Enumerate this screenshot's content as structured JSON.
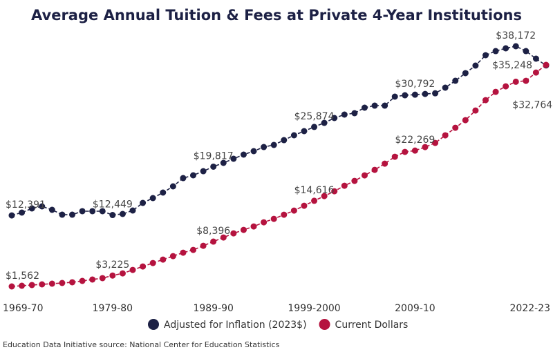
{
  "chart_data": {
    "type": "line",
    "title": "Average Annual Tuition & Fees at Private 4-Year Institutions",
    "source": "Education Data Initiative source: National Center for Education Statistics",
    "categories": [
      "1969-70",
      null,
      null,
      null,
      null,
      null,
      null,
      null,
      null,
      null,
      "1979-80",
      null,
      null,
      null,
      null,
      null,
      null,
      null,
      null,
      null,
      "1989-90",
      null,
      null,
      null,
      null,
      null,
      null,
      null,
      null,
      null,
      "1999-2000",
      null,
      null,
      null,
      null,
      null,
      null,
      null,
      null,
      null,
      "2009-10",
      null,
      null,
      null,
      null,
      null,
      null,
      null,
      null,
      null,
      null,
      null,
      null,
      "2022-23"
    ],
    "series": [
      {
        "name": "Adjusted for Inflation (2023$)",
        "color": "#1d2145",
        "values": [
          12391,
          12818,
          13450,
          13765,
          13239,
          12500,
          12500,
          13030,
          13030,
          13030,
          12449,
          12608,
          13134,
          14291,
          15028,
          15869,
          16816,
          18078,
          18499,
          19130,
          19817,
          20393,
          21024,
          21655,
          22181,
          22812,
          23128,
          23864,
          24601,
          25232,
          25874,
          26494,
          27231,
          27757,
          27967,
          28809,
          29124,
          29124,
          30492,
          30702,
          30792,
          30900,
          31000,
          31860,
          32912,
          34069,
          35226,
          36804,
          37435,
          37856,
          38172,
          37435,
          36278,
          35248
        ],
        "value_labels": [
          "$12,391",
          null,
          null,
          null,
          null,
          null,
          null,
          null,
          null,
          null,
          "$12,449",
          null,
          null,
          null,
          null,
          null,
          null,
          null,
          null,
          null,
          "$19,817",
          null,
          null,
          null,
          null,
          null,
          null,
          null,
          null,
          null,
          "$25,874",
          null,
          null,
          null,
          null,
          null,
          null,
          null,
          null,
          null,
          "$30,792",
          null,
          null,
          null,
          null,
          null,
          null,
          null,
          null,
          null,
          "$38,172",
          null,
          null,
          "$35,248"
        ]
      },
      {
        "name": "Current Dollars",
        "color": "#b5133f",
        "values": [
          1562,
          1667,
          1773,
          1878,
          1983,
          2088,
          2194,
          2404,
          2615,
          2825,
          3225,
          3552,
          4078,
          4604,
          5130,
          5656,
          6182,
          6708,
          7129,
          7760,
          8396,
          9022,
          9654,
          10180,
          10706,
          11337,
          11863,
          12494,
          13125,
          13862,
          14616,
          15334,
          16070,
          16912,
          17648,
          18490,
          19331,
          20278,
          21330,
          22066,
          22269,
          22803,
          23434,
          24591,
          25748,
          26905,
          28378,
          29956,
          31218,
          32060,
          32764,
          32902,
          34165,
          35330
        ],
        "value_labels": [
          "$1,562",
          null,
          null,
          null,
          null,
          null,
          null,
          null,
          null,
          null,
          "$3,225",
          null,
          null,
          null,
          null,
          null,
          null,
          null,
          null,
          null,
          "$8,396",
          null,
          null,
          null,
          null,
          null,
          null,
          null,
          null,
          null,
          "$14,616",
          null,
          null,
          null,
          null,
          null,
          null,
          null,
          null,
          null,
          "$22,269",
          null,
          null,
          null,
          null,
          null,
          null,
          null,
          null,
          null,
          "$32,764",
          null,
          null,
          null
        ]
      }
    ],
    "legend": "bottom"
  }
}
